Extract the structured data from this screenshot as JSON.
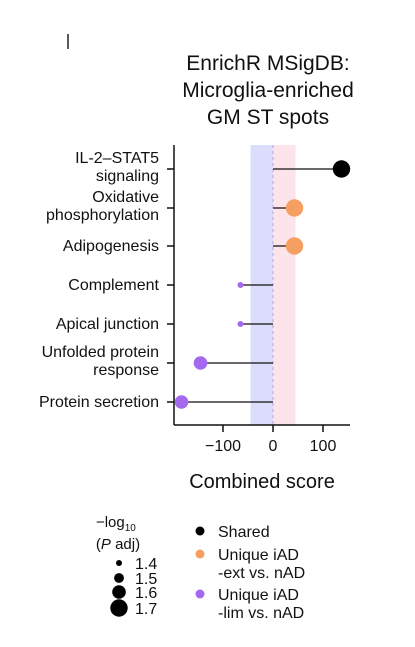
{
  "chart_data": {
    "type": "scatter",
    "subtype": "lollipop",
    "title_lines": [
      "EnrichR MSigDB:",
      "Microglia-enriched",
      "GM ST spots"
    ],
    "xlabel": "Combined score",
    "xlim": [
      -190,
      150
    ],
    "xticks": [
      -100,
      0,
      100
    ],
    "xtick_labels": [
      "−100",
      "0",
      "100"
    ],
    "shaded_bands": [
      {
        "from": -45,
        "to": 0,
        "color": "#dcdcfd"
      },
      {
        "from": 0,
        "to": 45,
        "color": "#fde3ea"
      }
    ],
    "categories": [
      {
        "label_lines": [
          "IL-2–STAT5",
          "signaling"
        ],
        "value": 137,
        "group": "Shared",
        "neglog10_p_adj": 1.7
      },
      {
        "label_lines": [
          "Oxidative",
          "phosphorylation"
        ],
        "value": 43,
        "group": "Unique iAD -ext vs. nAD",
        "neglog10_p_adj": 1.7
      },
      {
        "label_lines": [
          "Adipogenesis"
        ],
        "value": 43,
        "group": "Unique iAD -ext vs. nAD",
        "neglog10_p_adj": 1.7
      },
      {
        "label_lines": [
          "Complement"
        ],
        "value": -65,
        "group": "Unique iAD -lim vs. nAD",
        "neglog10_p_adj": 1.4
      },
      {
        "label_lines": [
          "Apical junction"
        ],
        "value": -65,
        "group": "Unique iAD -lim vs. nAD",
        "neglog10_p_adj": 1.4
      },
      {
        "label_lines": [
          "Unfolded protein",
          "response"
        ],
        "value": -145,
        "group": "Unique iAD -lim vs. nAD",
        "neglog10_p_adj": 1.6
      },
      {
        "label_lines": [
          "Protein secretion"
        ],
        "value": -183,
        "group": "Unique iAD -lim vs. nAD",
        "neglog10_p_adj": 1.6
      }
    ],
    "legend_groups": [
      {
        "name": "Shared",
        "label_lines": [
          "Shared"
        ],
        "color": "#000000"
      },
      {
        "name": "Unique iAD -ext vs. nAD",
        "label_lines": [
          "Unique iAD",
          "-ext vs. nAD"
        ],
        "color": "#f5a061"
      },
      {
        "name": "Unique iAD -lim vs. nAD",
        "label_lines": [
          "Unique iAD",
          "-lim vs. nAD"
        ],
        "color": "#a569f0"
      }
    ],
    "size_legend": {
      "title_parts": [
        "−log",
        "10",
        "(",
        "P",
        " adj)"
      ],
      "values": [
        1.4,
        1.5,
        1.6,
        1.7
      ],
      "labels": [
        "1.4",
        "1.5",
        "1.6",
        "1.7"
      ]
    }
  }
}
